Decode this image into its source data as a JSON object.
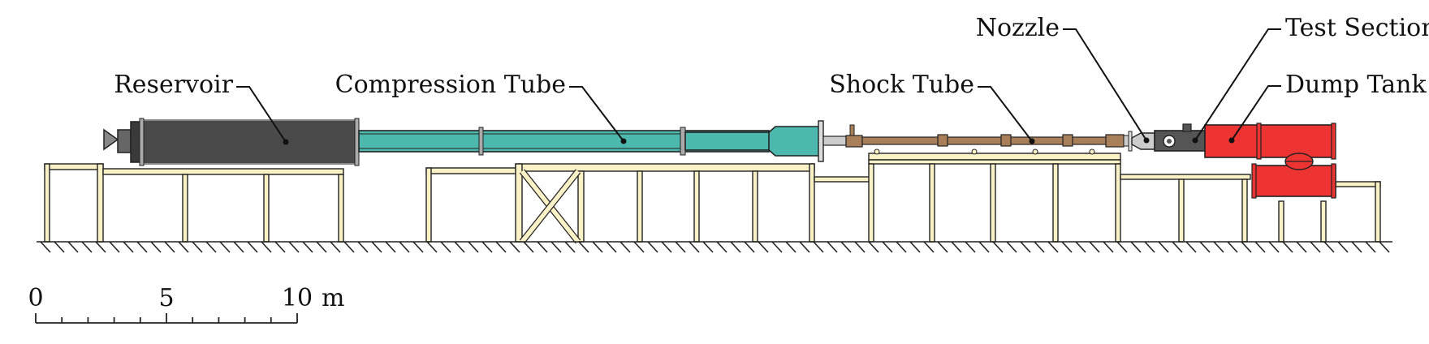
{
  "labels": {
    "reservoir": "Reservoir",
    "compression_tube": "Compression Tube",
    "shock_tube": "Shock Tube",
    "nozzle": "Nozzle",
    "test_section": "Test Section",
    "dump_tank": "Dump Tank"
  },
  "scale_bar": {
    "ticks": [
      "0",
      "5",
      "10"
    ],
    "unit": "m"
  },
  "colors": {
    "reservoir": "#4a4a4a",
    "compression_tube": "#4db8ae",
    "shock_tube": "#a97f5a",
    "test_section": "#555555",
    "dump_tank": "#ee3333",
    "frame": "#fbf1c7",
    "flange": "#aaaaaa"
  }
}
